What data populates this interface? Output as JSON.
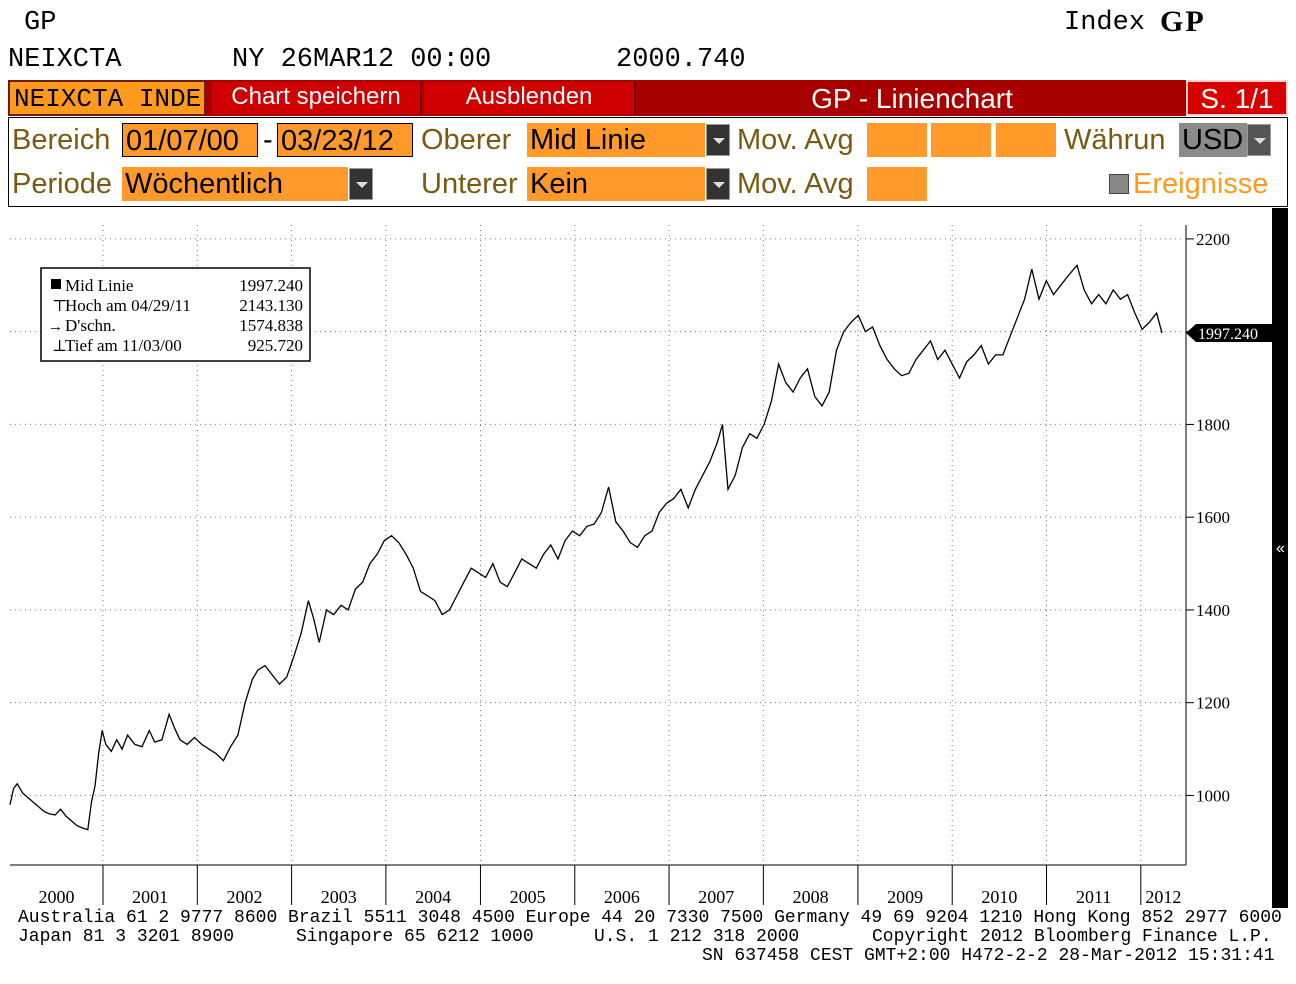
{
  "header": {
    "function_code": "GP",
    "index_label": "Index",
    "index_brand": "GP",
    "ticker": "NEIXCTA",
    "datetime": "NY 26MAR12 00:00",
    "last_value": "2000.740"
  },
  "toolbar": {
    "ticker_field": "NEIXCTA INDE",
    "save_chart": "Chart speichern",
    "hide": "Ausblenden",
    "title": "GP - Linienchart",
    "page": "S. 1/1"
  },
  "settings": {
    "range_label": "Bereich",
    "range_start": "01/07/00",
    "range_sep": "-",
    "range_end": "03/23/12",
    "upper_label": "Oberer",
    "upper_value": "Mid Linie",
    "mov_avg_label_1": "Mov. Avg",
    "currency_label": "Währun",
    "currency_value": "USD",
    "period_label": "Periode",
    "period_value": "Wöchentlich",
    "lower_label": "Unterer",
    "lower_value": "Kein",
    "mov_avg_label_2": "Mov. Avg",
    "events_label": "Ereignisse"
  },
  "legend": {
    "mid_label": "Mid Linie",
    "mid_value": "1997.240",
    "high_label": "Hoch am 04/29/11",
    "high_value": "2143.130",
    "avg_label": "D'schn.",
    "avg_value": "1574.838",
    "low_label": "Tief am 11/03/00",
    "low_value": "925.720"
  },
  "chart_data": {
    "type": "line",
    "series": [
      {
        "name": "Mid Linie",
        "color": "#000000",
        "points": [
          [
            "2000-01-07",
            980
          ],
          [
            "2000-01-21",
            1015
          ],
          [
            "2000-02-04",
            1025
          ],
          [
            "2000-02-25",
            1005
          ],
          [
            "2000-03-17",
            995
          ],
          [
            "2000-04-07",
            985
          ],
          [
            "2000-04-28",
            975
          ],
          [
            "2000-05-19",
            965
          ],
          [
            "2000-06-09",
            960
          ],
          [
            "2000-06-30",
            958
          ],
          [
            "2000-07-21",
            970
          ],
          [
            "2000-08-11",
            955
          ],
          [
            "2000-09-01",
            945
          ],
          [
            "2000-09-22",
            935
          ],
          [
            "2000-10-13",
            930
          ],
          [
            "2000-11-03",
            926
          ],
          [
            "2000-11-17",
            985
          ],
          [
            "2000-12-01",
            1020
          ],
          [
            "2000-12-15",
            1090
          ],
          [
            "2000-12-29",
            1140
          ],
          [
            "2001-01-12",
            1110
          ],
          [
            "2001-02-02",
            1095
          ],
          [
            "2001-02-23",
            1120
          ],
          [
            "2001-03-16",
            1100
          ],
          [
            "2001-04-06",
            1130
          ],
          [
            "2001-05-04",
            1110
          ],
          [
            "2001-06-01",
            1105
          ],
          [
            "2001-06-29",
            1140
          ],
          [
            "2001-07-20",
            1115
          ],
          [
            "2001-08-17",
            1120
          ],
          [
            "2001-09-14",
            1175
          ],
          [
            "2001-10-05",
            1145
          ],
          [
            "2001-10-26",
            1120
          ],
          [
            "2001-11-23",
            1110
          ],
          [
            "2001-12-21",
            1125
          ],
          [
            "2002-01-18",
            1110
          ],
          [
            "2002-02-15",
            1100
          ],
          [
            "2002-03-15",
            1090
          ],
          [
            "2002-04-12",
            1075
          ],
          [
            "2002-05-10",
            1105
          ],
          [
            "2002-06-07",
            1130
          ],
          [
            "2002-07-05",
            1200
          ],
          [
            "2002-08-02",
            1250
          ],
          [
            "2002-08-23",
            1270
          ],
          [
            "2002-09-20",
            1280
          ],
          [
            "2002-10-18",
            1260
          ],
          [
            "2002-11-15",
            1240
          ],
          [
            "2002-12-13",
            1255
          ],
          [
            "2003-01-10",
            1300
          ],
          [
            "2003-02-07",
            1350
          ],
          [
            "2003-03-07",
            1420
          ],
          [
            "2003-03-28",
            1380
          ],
          [
            "2003-04-18",
            1330
          ],
          [
            "2003-05-16",
            1400
          ],
          [
            "2003-06-13",
            1390
          ],
          [
            "2003-07-11",
            1410
          ],
          [
            "2003-08-08",
            1400
          ],
          [
            "2003-09-05",
            1445
          ],
          [
            "2003-10-03",
            1460
          ],
          [
            "2003-10-31",
            1500
          ],
          [
            "2003-11-28",
            1520
          ],
          [
            "2003-12-26",
            1550
          ],
          [
            "2004-01-23",
            1560
          ],
          [
            "2004-02-20",
            1545
          ],
          [
            "2004-03-19",
            1520
          ],
          [
            "2004-04-16",
            1490
          ],
          [
            "2004-05-14",
            1440
          ],
          [
            "2004-06-11",
            1430
          ],
          [
            "2004-07-09",
            1420
          ],
          [
            "2004-08-06",
            1390
          ],
          [
            "2004-09-03",
            1400
          ],
          [
            "2004-10-01",
            1430
          ],
          [
            "2004-10-29",
            1460
          ],
          [
            "2004-11-26",
            1490
          ],
          [
            "2004-12-24",
            1480
          ],
          [
            "2005-01-21",
            1470
          ],
          [
            "2005-02-18",
            1500
          ],
          [
            "2005-03-18",
            1460
          ],
          [
            "2005-04-15",
            1450
          ],
          [
            "2005-05-13",
            1480
          ],
          [
            "2005-06-10",
            1510
          ],
          [
            "2005-07-08",
            1500
          ],
          [
            "2005-08-05",
            1490
          ],
          [
            "2005-09-02",
            1520
          ],
          [
            "2005-09-30",
            1540
          ],
          [
            "2005-10-28",
            1510
          ],
          [
            "2005-11-25",
            1550
          ],
          [
            "2005-12-23",
            1570
          ],
          [
            "2006-01-20",
            1560
          ],
          [
            "2006-02-17",
            1580
          ],
          [
            "2006-03-17",
            1585
          ],
          [
            "2006-04-14",
            1610
          ],
          [
            "2006-05-12",
            1665
          ],
          [
            "2006-06-09",
            1590
          ],
          [
            "2006-07-07",
            1570
          ],
          [
            "2006-08-04",
            1545
          ],
          [
            "2006-09-01",
            1535
          ],
          [
            "2006-09-29",
            1560
          ],
          [
            "2006-10-27",
            1570
          ],
          [
            "2006-11-24",
            1610
          ],
          [
            "2006-12-22",
            1630
          ],
          [
            "2007-01-19",
            1640
          ],
          [
            "2007-02-16",
            1660
          ],
          [
            "2007-03-16",
            1620
          ],
          [
            "2007-04-13",
            1660
          ],
          [
            "2007-05-11",
            1690
          ],
          [
            "2007-06-08",
            1720
          ],
          [
            "2007-07-06",
            1760
          ],
          [
            "2007-07-27",
            1800
          ],
          [
            "2007-08-17",
            1660
          ],
          [
            "2007-09-14",
            1690
          ],
          [
            "2007-10-12",
            1750
          ],
          [
            "2007-11-09",
            1780
          ],
          [
            "2007-12-07",
            1770
          ],
          [
            "2008-01-04",
            1800
          ],
          [
            "2008-02-01",
            1850
          ],
          [
            "2008-02-29",
            1930
          ],
          [
            "2008-03-28",
            1890
          ],
          [
            "2008-04-25",
            1870
          ],
          [
            "2008-05-23",
            1900
          ],
          [
            "2008-06-20",
            1920
          ],
          [
            "2008-07-18",
            1860
          ],
          [
            "2008-08-15",
            1840
          ],
          [
            "2008-09-12",
            1870
          ],
          [
            "2008-10-10",
            1960
          ],
          [
            "2008-11-07",
            2000
          ],
          [
            "2008-12-05",
            2020
          ],
          [
            "2009-01-02",
            2035
          ],
          [
            "2009-01-30",
            2000
          ],
          [
            "2009-02-27",
            2010
          ],
          [
            "2009-03-27",
            1970
          ],
          [
            "2009-04-24",
            1940
          ],
          [
            "2009-05-22",
            1920
          ],
          [
            "2009-06-19",
            1905
          ],
          [
            "2009-07-17",
            1910
          ],
          [
            "2009-08-14",
            1940
          ],
          [
            "2009-09-11",
            1960
          ],
          [
            "2009-10-09",
            1980
          ],
          [
            "2009-11-06",
            1940
          ],
          [
            "2009-12-04",
            1960
          ],
          [
            "2010-01-01",
            1930
          ],
          [
            "2010-01-29",
            1900
          ],
          [
            "2010-02-26",
            1935
          ],
          [
            "2010-03-26",
            1950
          ],
          [
            "2010-04-23",
            1970
          ],
          [
            "2010-05-21",
            1930
          ],
          [
            "2010-06-18",
            1950
          ],
          [
            "2010-07-16",
            1950
          ],
          [
            "2010-08-13",
            1990
          ],
          [
            "2010-09-10",
            2030
          ],
          [
            "2010-10-08",
            2070
          ],
          [
            "2010-11-05",
            2135
          ],
          [
            "2010-12-03",
            2070
          ],
          [
            "2010-12-31",
            2110
          ],
          [
            "2011-01-28",
            2080
          ],
          [
            "2011-02-25",
            2100
          ],
          [
            "2011-03-25",
            2120
          ],
          [
            "2011-04-29",
            2143
          ],
          [
            "2011-05-27",
            2090
          ],
          [
            "2011-06-24",
            2060
          ],
          [
            "2011-07-22",
            2080
          ],
          [
            "2011-08-19",
            2060
          ],
          [
            "2011-09-16",
            2090
          ],
          [
            "2011-10-14",
            2070
          ],
          [
            "2011-11-11",
            2080
          ],
          [
            "2011-12-09",
            2040
          ],
          [
            "2012-01-06",
            2005
          ],
          [
            "2012-02-03",
            2020
          ],
          [
            "2012-03-02",
            2040
          ],
          [
            "2012-03-23",
            1997
          ]
        ]
      }
    ],
    "x_tick_labels": [
      "2000",
      "2001",
      "2002",
      "2003",
      "2004",
      "2005",
      "2006",
      "2007",
      "2008",
      "2009",
      "2010",
      "2011",
      "2012"
    ],
    "y_ticks": [
      1000,
      1200,
      1400,
      1600,
      1800,
      2000,
      2200
    ],
    "y_tick_labels": [
      "1000",
      "1200",
      "1400",
      "1600",
      "1800",
      "",
      "2200"
    ],
    "ylim": [
      850,
      2230
    ],
    "xlim": [
      "2000-01-07",
      "2012-03-23"
    ],
    "last_value_label": "1997.240",
    "grid": "vertical-dotted",
    "legend_position": "top-left"
  },
  "footer": {
    "line1": "Australia 61 2 9777 8600 Brazil 5511 3048 4500 Europe 44 20 7330 7500 Germany 49 69 9204 1210 Hong Kong 852 2977 6000",
    "line2_left": "Japan 81 3 3201 8900",
    "line2_mid1": "Singapore 65 6212 1000",
    "line2_mid2": "U.S. 1 212 318 2000",
    "line2_right": "Copyright 2012 Bloomberg Finance L.P.",
    "line3": "SN 637458 CEST GMT+2:00 H472-2-2 28-Mar-2012 15:31:41"
  },
  "colors": {
    "toolbar_red": "#a80000",
    "field_orange": "#ff9a2a",
    "label_brown": "#7a5a10",
    "events_orange": "#ff9a1e"
  }
}
